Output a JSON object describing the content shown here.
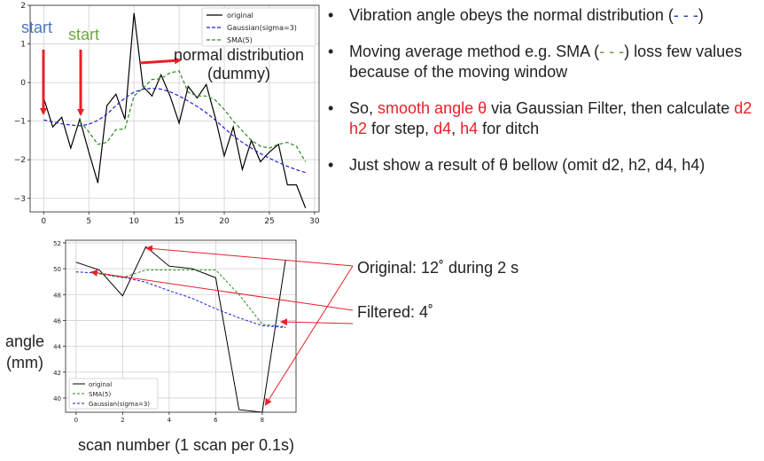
{
  "bullets": {
    "b1": {
      "t1": "Vibration angle obeys the normal distribution (",
      "dash": "- - -",
      "t2": ")"
    },
    "b2": {
      "t1": "Moving average method e.g. SMA (",
      "dash": "- - -",
      "t2": ") loss few values because of the moving window"
    },
    "b3": {
      "t1": "So, ",
      "smooth": "smooth angle θ",
      "t2": "  via Gaussian Filter, then calculate ",
      "d2h2": "d2 h2",
      "t3": " for step, ",
      "d4": "d4",
      "t4": ", ",
      "h4": "h4",
      "t5": " for ditch"
    },
    "b4": {
      "t1": "Just show a result of θ bellow (omit d2, h2, d4, h4)"
    }
  },
  "annotations": {
    "original": "Original: 12˚  during 2 s",
    "filtered": "Filtered: 4˚",
    "start_blue": "start",
    "start_green": "start",
    "normal_dist_line1": "normal distribution",
    "normal_dist_line2": "(dummy)"
  },
  "axis_labels": {
    "bottom_y_line1": "angle",
    "bottom_y_line2": "(mm)",
    "bottom_x": "scan number (1 scan per 0.1s)"
  },
  "colors": {
    "original": "#000000",
    "gaussian": "#1f1fd6",
    "sma": "#2e8b22",
    "arrow": "#e8202a",
    "start_blue": "#4a78c0",
    "start_green": "#6aaa40"
  },
  "chart_data": [
    {
      "type": "line",
      "xlim": [
        -1.5,
        30.5
      ],
      "ylim": [
        -3.35,
        2.0
      ],
      "xticks": [
        0,
        5,
        10,
        15,
        20,
        25,
        30
      ],
      "yticks": [
        -3,
        -2,
        -1,
        0,
        1,
        2
      ],
      "grid": true,
      "legend": "top-right",
      "series": [
        {
          "name": "original",
          "style": "solid",
          "color": "#000000",
          "x": [
            0,
            1,
            2,
            3,
            4,
            5,
            6,
            7,
            8,
            9,
            10,
            11,
            12,
            13,
            14,
            15,
            16,
            17,
            18,
            19,
            20,
            21,
            22,
            23,
            24,
            25,
            26,
            27,
            28,
            29
          ],
          "y": [
            -0.4,
            -1.15,
            -0.9,
            -1.7,
            -0.95,
            -1.8,
            -2.6,
            -0.6,
            -0.3,
            -0.95,
            1.8,
            -0.1,
            -0.35,
            0.2,
            -0.35,
            -1.05,
            -0.1,
            -0.4,
            -0.05,
            -0.9,
            -1.9,
            -1.15,
            -2.25,
            -1.5,
            -2.05,
            -1.8,
            -1.6,
            -2.65,
            -2.65,
            -3.25
          ]
        },
        {
          "name": "Gaussian(sigma=3)",
          "style": "dashed",
          "color": "#1f1fd6",
          "x": [
            0,
            1,
            2,
            3,
            4,
            5,
            6,
            7,
            8,
            9,
            10,
            11,
            12,
            13,
            14,
            15,
            16,
            17,
            18,
            19,
            20,
            21,
            22,
            23,
            24,
            25,
            26,
            27,
            28,
            29
          ],
          "y": [
            -0.97,
            -1.02,
            -1.07,
            -1.1,
            -1.12,
            -1.08,
            -0.98,
            -0.82,
            -0.6,
            -0.4,
            -0.25,
            -0.17,
            -0.15,
            -0.17,
            -0.24,
            -0.35,
            -0.48,
            -0.62,
            -0.78,
            -0.97,
            -1.18,
            -1.38,
            -1.55,
            -1.7,
            -1.84,
            -1.96,
            -2.07,
            -2.17,
            -2.26,
            -2.33
          ]
        },
        {
          "name": "SMA(5)",
          "style": "dashed",
          "color": "#2e8b22",
          "x": [
            4,
            5,
            6,
            7,
            8,
            9,
            10,
            11,
            12,
            13,
            14,
            15,
            16,
            17,
            18,
            19,
            20,
            21,
            22,
            23,
            24,
            25,
            26,
            27,
            28,
            29
          ],
          "y": [
            -1.0,
            -1.28,
            -1.6,
            -1.55,
            -1.22,
            -1.2,
            -0.35,
            -0.15,
            0.08,
            0.1,
            0.25,
            0.3,
            -0.25,
            -0.35,
            -0.35,
            -0.45,
            -0.7,
            -1.0,
            -1.25,
            -1.5,
            -1.65,
            -1.7,
            -1.6,
            -1.55,
            -1.65,
            -2.05
          ]
        }
      ]
    },
    {
      "type": "line",
      "xlim": [
        -0.45,
        9.45
      ],
      "ylim": [
        38.9,
        52.2
      ],
      "xticks": [
        0,
        2,
        4,
        6,
        8
      ],
      "yticks": [
        40,
        42,
        44,
        46,
        48,
        50,
        52
      ],
      "grid": true,
      "legend": "bottom-left",
      "series": [
        {
          "name": "original",
          "style": "solid",
          "color": "#000000",
          "x": [
            0,
            1,
            2,
            3,
            4,
            5,
            6,
            7,
            8,
            9
          ],
          "y": [
            50.5,
            49.9,
            47.9,
            51.7,
            50.2,
            50.0,
            49.3,
            39.1,
            38.9,
            50.7
          ]
        },
        {
          "name": "SMA(5)",
          "style": "dashed",
          "color": "#2e8b22",
          "x": [
            1,
            2,
            3,
            4,
            5,
            6,
            7,
            8,
            9
          ],
          "y": [
            49.6,
            49.3,
            49.9,
            49.9,
            49.9,
            49.9,
            48.0,
            45.7,
            45.5
          ]
        },
        {
          "name": "Gaussian(sigma=3)",
          "style": "dashed",
          "color": "#1f1fd6",
          "x": [
            0,
            1,
            2,
            3,
            4,
            5,
            6,
            7,
            8,
            9
          ],
          "y": [
            49.75,
            49.65,
            49.35,
            48.95,
            48.3,
            47.7,
            46.9,
            46.2,
            45.6,
            45.45
          ]
        }
      ]
    }
  ]
}
